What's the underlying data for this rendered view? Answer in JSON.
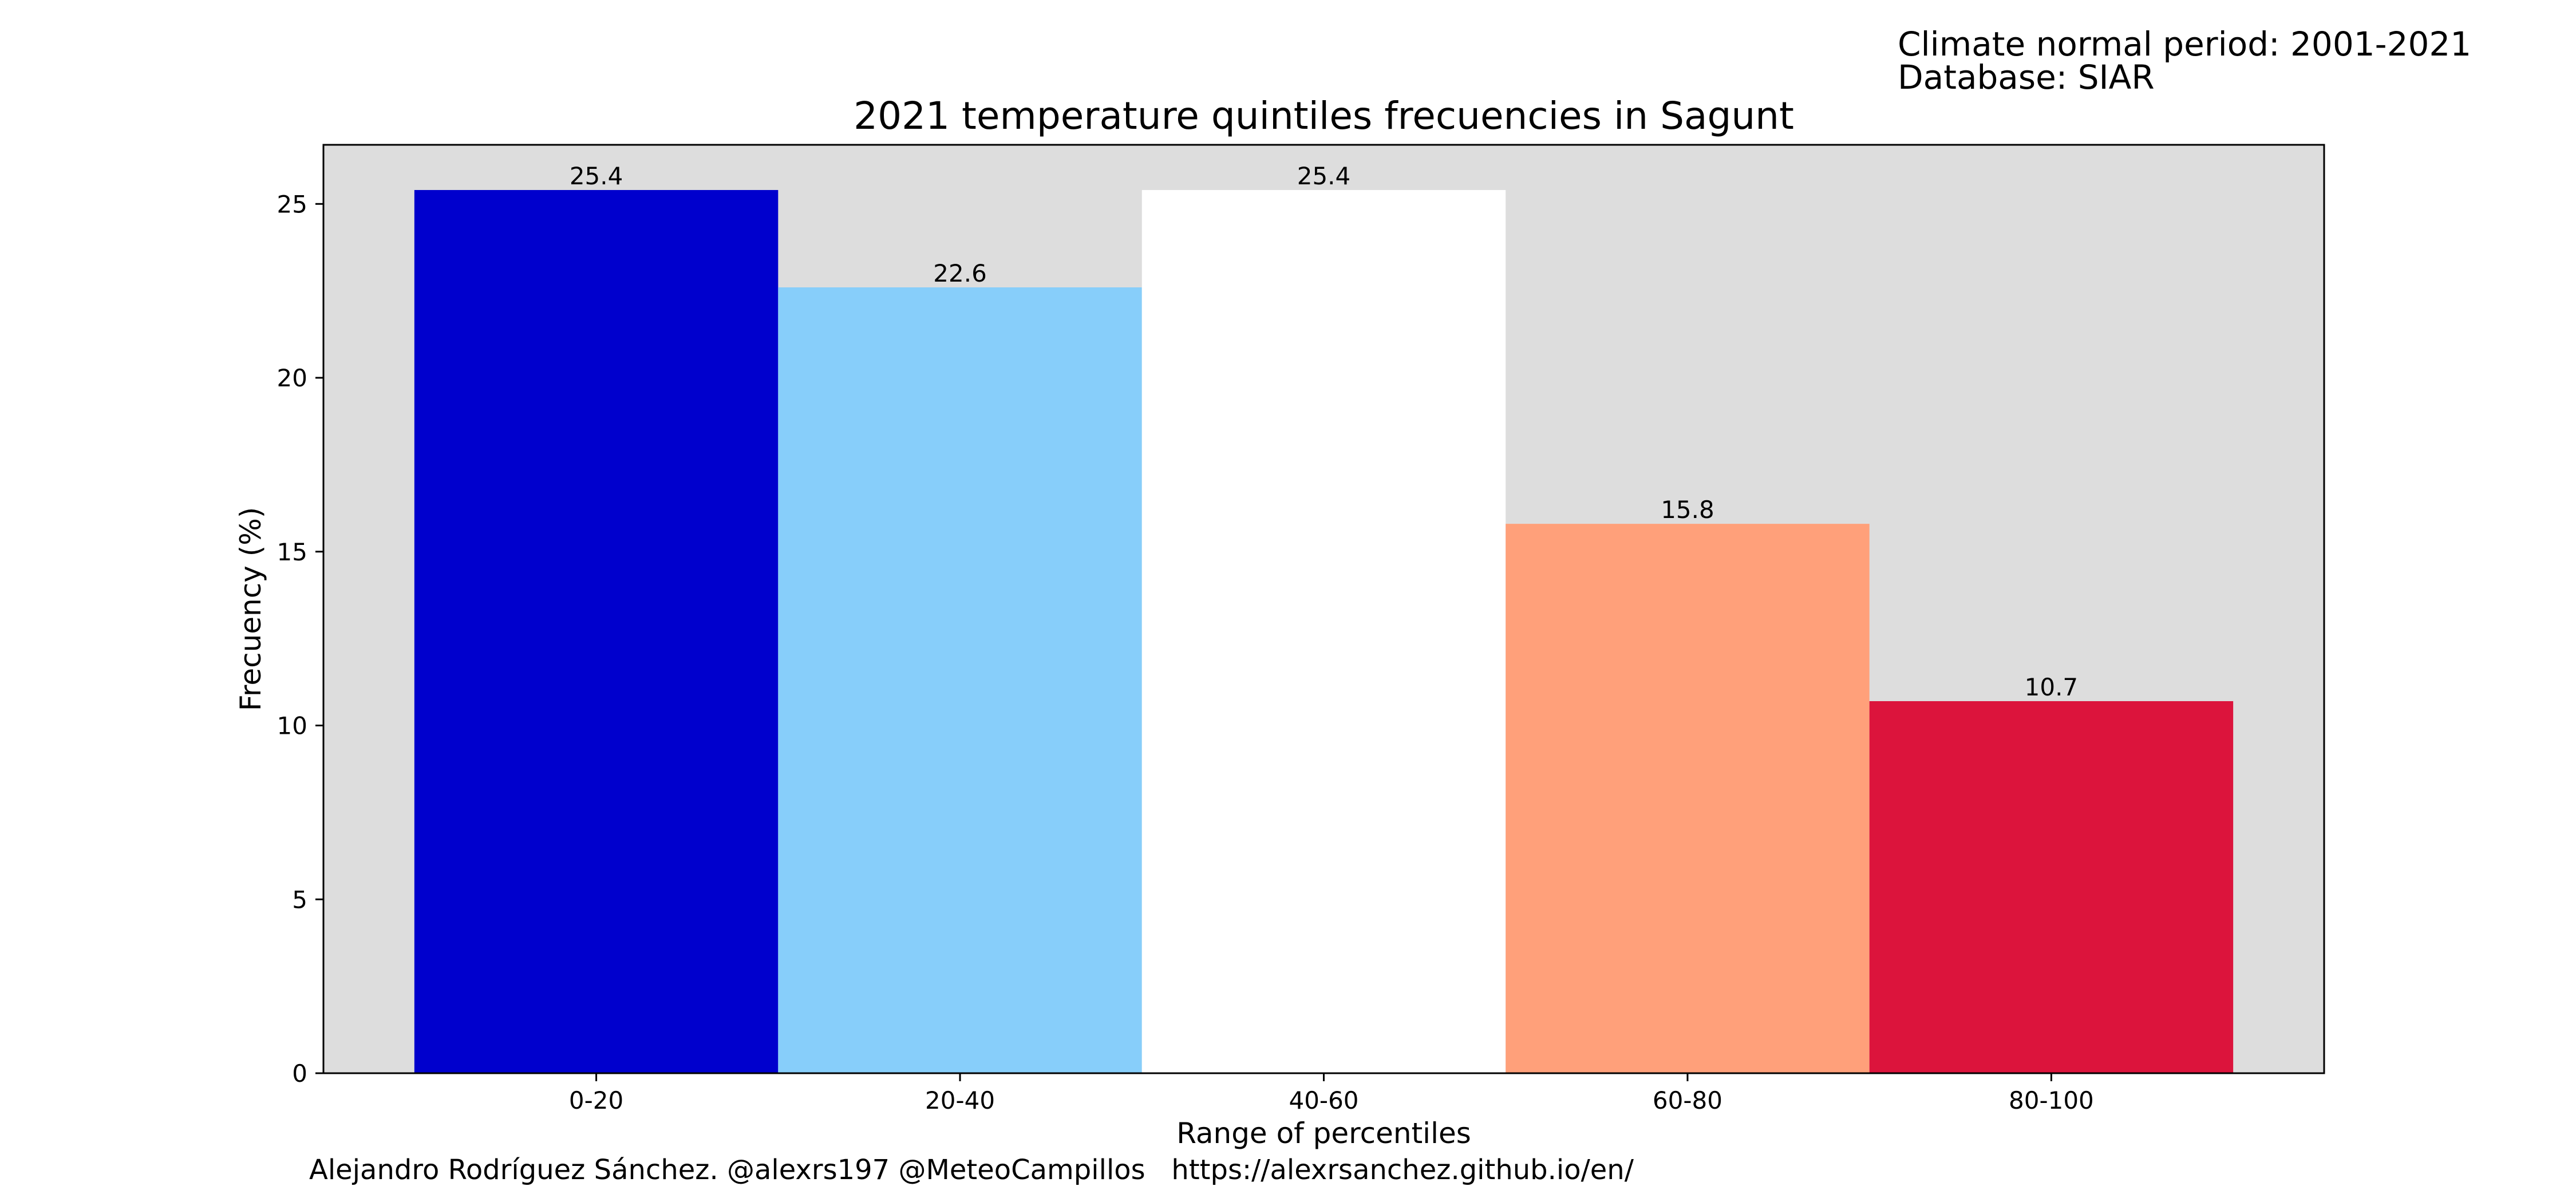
{
  "header": {
    "period": "Climate normal period: 2001-2021",
    "database": "Database: SIAR"
  },
  "credits": "Alejandro Rodríguez Sánchez. @alexrs197 @MeteoCampillos   https://alexrsanchez.github.io/en/",
  "chart_data": {
    "type": "bar",
    "title": "2021 temperature quintiles frecuencies in Sagunt",
    "xlabel": "Range of percentiles",
    "ylabel": "Frecuency (%)",
    "categories": [
      "0-20",
      "20-40",
      "40-60",
      "60-80",
      "80-100"
    ],
    "values": [
      25.4,
      22.6,
      25.4,
      15.8,
      10.7
    ],
    "data_labels": [
      "25.4",
      "22.6",
      "25.4",
      "15.8",
      "10.7"
    ],
    "colors": [
      "#0000cd",
      "#87cefa",
      "#ffffff",
      "#ffa07a",
      "#dc143c"
    ],
    "ylim": [
      0,
      26.7
    ],
    "yticks": [
      0,
      5,
      10,
      15,
      20,
      25
    ],
    "background": "#dddddd",
    "grid": false,
    "legend": "none"
  }
}
